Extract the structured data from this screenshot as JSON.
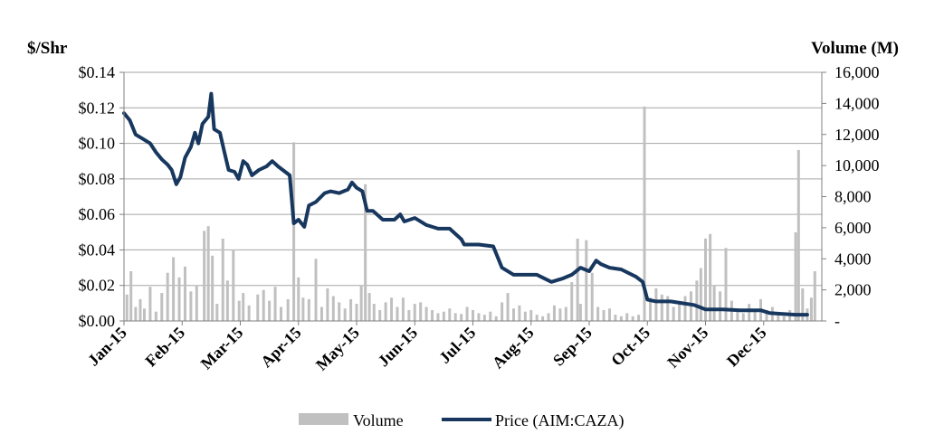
{
  "chart_data": {
    "type": "line",
    "left_axis": {
      "title": "$/Shr",
      "ticks": [
        "$0.00",
        "$0.02",
        "$0.04",
        "$0.06",
        "$0.08",
        "$0.10",
        "$0.12",
        "$0.14"
      ],
      "range": [
        0,
        0.14
      ]
    },
    "right_axis": {
      "title": "Volume (M)",
      "ticks": [
        "-",
        "2,000",
        "4,000",
        "6,000",
        "8,000",
        "10,000",
        "12,000",
        "14,000",
        "16,000"
      ],
      "range": [
        0,
        16000
      ]
    },
    "x_axis": {
      "ticks": [
        "Jan-15",
        "Feb-15",
        "Mar-15",
        "Apr-15",
        "May-15",
        "Jun-15",
        "Jul-15",
        "Aug-15",
        "Sep-15",
        "Oct-15",
        "Nov-15",
        "Dec-15"
      ]
    },
    "grid": "horizontal",
    "legend_position": "bottom",
    "legend": [
      {
        "label": "Volume",
        "kind": "bar",
        "color": "#c0c0c0"
      },
      {
        "label": "Price (AIM:CAZA)",
        "kind": "line",
        "color": "#17375e"
      }
    ],
    "series": [
      {
        "name": "Price (AIM:CAZA)",
        "axis": "left",
        "points": [
          [
            0,
            0.117
          ],
          [
            0.1,
            0.113
          ],
          [
            0.2,
            0.105
          ],
          [
            0.3,
            0.103
          ],
          [
            0.45,
            0.1
          ],
          [
            0.55,
            0.095
          ],
          [
            0.65,
            0.091
          ],
          [
            0.75,
            0.088
          ],
          [
            0.82,
            0.085
          ],
          [
            0.9,
            0.077
          ],
          [
            0.97,
            0.081
          ],
          [
            1.05,
            0.092
          ],
          [
            1.15,
            0.098
          ],
          [
            1.22,
            0.106
          ],
          [
            1.28,
            0.1
          ],
          [
            1.35,
            0.111
          ],
          [
            1.45,
            0.115
          ],
          [
            1.5,
            0.128
          ],
          [
            1.55,
            0.108
          ],
          [
            1.65,
            0.106
          ],
          [
            1.72,
            0.096
          ],
          [
            1.8,
            0.085
          ],
          [
            1.9,
            0.084
          ],
          [
            1.97,
            0.08
          ],
          [
            2.05,
            0.09
          ],
          [
            2.12,
            0.088
          ],
          [
            2.2,
            0.082
          ],
          [
            2.32,
            0.085
          ],
          [
            2.45,
            0.087
          ],
          [
            2.55,
            0.09
          ],
          [
            2.65,
            0.087
          ],
          [
            2.85,
            0.082
          ],
          [
            2.92,
            0.055
          ],
          [
            3.0,
            0.057
          ],
          [
            3.1,
            0.053
          ],
          [
            3.18,
            0.065
          ],
          [
            3.3,
            0.067
          ],
          [
            3.45,
            0.072
          ],
          [
            3.55,
            0.073
          ],
          [
            3.7,
            0.072
          ],
          [
            3.85,
            0.074
          ],
          [
            3.92,
            0.078
          ],
          [
            4.0,
            0.075
          ],
          [
            4.1,
            0.073
          ],
          [
            4.18,
            0.062
          ],
          [
            4.28,
            0.062
          ],
          [
            4.45,
            0.057
          ],
          [
            4.65,
            0.057
          ],
          [
            4.75,
            0.06
          ],
          [
            4.82,
            0.056
          ],
          [
            5.0,
            0.058
          ],
          [
            5.2,
            0.054
          ],
          [
            5.4,
            0.052
          ],
          [
            5.6,
            0.052
          ],
          [
            5.8,
            0.046
          ],
          [
            5.85,
            0.043
          ],
          [
            6.1,
            0.043
          ],
          [
            6.35,
            0.042
          ],
          [
            6.5,
            0.03
          ],
          [
            6.7,
            0.026
          ],
          [
            6.9,
            0.026
          ],
          [
            7.1,
            0.026
          ],
          [
            7.35,
            0.022
          ],
          [
            7.55,
            0.024
          ],
          [
            7.7,
            0.026
          ],
          [
            7.85,
            0.03
          ],
          [
            8.0,
            0.028
          ],
          [
            8.12,
            0.034
          ],
          [
            8.2,
            0.032
          ],
          [
            8.35,
            0.03
          ],
          [
            8.55,
            0.029
          ],
          [
            8.8,
            0.025
          ],
          [
            8.92,
            0.022
          ],
          [
            9.0,
            0.012
          ],
          [
            9.15,
            0.011
          ],
          [
            9.4,
            0.011
          ],
          [
            9.6,
            0.01
          ],
          [
            9.8,
            0.009
          ],
          [
            10.0,
            0.0065
          ],
          [
            10.3,
            0.0065
          ],
          [
            10.6,
            0.006
          ],
          [
            10.95,
            0.006
          ],
          [
            11.1,
            0.0045
          ],
          [
            11.3,
            0.004
          ],
          [
            11.55,
            0.0035
          ],
          [
            11.75,
            0.0035
          ]
        ]
      },
      {
        "name": "Volume",
        "axis": "right",
        "points": [
          [
            0.05,
            1700
          ],
          [
            0.12,
            3200
          ],
          [
            0.2,
            900
          ],
          [
            0.28,
            1400
          ],
          [
            0.35,
            800
          ],
          [
            0.45,
            2200
          ],
          [
            0.55,
            600
          ],
          [
            0.65,
            1800
          ],
          [
            0.75,
            3100
          ],
          [
            0.85,
            4100
          ],
          [
            0.95,
            2800
          ],
          [
            1.05,
            3500
          ],
          [
            1.15,
            1900
          ],
          [
            1.25,
            2300
          ],
          [
            1.38,
            5800
          ],
          [
            1.45,
            6100
          ],
          [
            1.52,
            4200
          ],
          [
            1.6,
            1100
          ],
          [
            1.7,
            5300
          ],
          [
            1.78,
            2600
          ],
          [
            1.88,
            4600
          ],
          [
            1.98,
            1300
          ],
          [
            2.05,
            1800
          ],
          [
            2.15,
            1000
          ],
          [
            2.3,
            1700
          ],
          [
            2.4,
            2000
          ],
          [
            2.5,
            1300
          ],
          [
            2.6,
            2200
          ],
          [
            2.7,
            900
          ],
          [
            2.82,
            1400
          ],
          [
            2.92,
            11500
          ],
          [
            3.0,
            2800
          ],
          [
            3.08,
            1500
          ],
          [
            3.18,
            1400
          ],
          [
            3.3,
            4000
          ],
          [
            3.4,
            900
          ],
          [
            3.5,
            2100
          ],
          [
            3.6,
            1600
          ],
          [
            3.7,
            1200
          ],
          [
            3.8,
            800
          ],
          [
            3.9,
            1400
          ],
          [
            4.0,
            1100
          ],
          [
            4.08,
            2300
          ],
          [
            4.15,
            8800
          ],
          [
            4.22,
            1800
          ],
          [
            4.3,
            1100
          ],
          [
            4.4,
            700
          ],
          [
            4.5,
            1200
          ],
          [
            4.6,
            1500
          ],
          [
            4.7,
            900
          ],
          [
            4.8,
            1500
          ],
          [
            4.9,
            700
          ],
          [
            5.0,
            1100
          ],
          [
            5.1,
            1200
          ],
          [
            5.2,
            900
          ],
          [
            5.3,
            700
          ],
          [
            5.4,
            500
          ],
          [
            5.5,
            600
          ],
          [
            5.6,
            800
          ],
          [
            5.7,
            500
          ],
          [
            5.8,
            450
          ],
          [
            5.9,
            900
          ],
          [
            6.0,
            700
          ],
          [
            6.1,
            500
          ],
          [
            6.2,
            400
          ],
          [
            6.3,
            600
          ],
          [
            6.4,
            300
          ],
          [
            6.5,
            1200
          ],
          [
            6.6,
            1800
          ],
          [
            6.7,
            800
          ],
          [
            6.8,
            1000
          ],
          [
            6.9,
            600
          ],
          [
            7.0,
            700
          ],
          [
            7.1,
            400
          ],
          [
            7.2,
            300
          ],
          [
            7.3,
            500
          ],
          [
            7.4,
            1000
          ],
          [
            7.5,
            800
          ],
          [
            7.6,
            900
          ],
          [
            7.7,
            2500
          ],
          [
            7.8,
            5300
          ],
          [
            7.85,
            1100
          ],
          [
            7.95,
            5200
          ],
          [
            8.05,
            3100
          ],
          [
            8.15,
            900
          ],
          [
            8.25,
            700
          ],
          [
            8.35,
            800
          ],
          [
            8.45,
            400
          ],
          [
            8.55,
            300
          ],
          [
            8.65,
            500
          ],
          [
            8.75,
            300
          ],
          [
            8.85,
            400
          ],
          [
            8.95,
            13800
          ],
          [
            9.05,
            1500
          ],
          [
            9.15,
            2100
          ],
          [
            9.25,
            1700
          ],
          [
            9.35,
            1600
          ],
          [
            9.45,
            900
          ],
          [
            9.55,
            1200
          ],
          [
            9.65,
            1600
          ],
          [
            9.75,
            1900
          ],
          [
            9.85,
            2600
          ],
          [
            9.92,
            3400
          ],
          [
            10.0,
            5300
          ],
          [
            10.08,
            5600
          ],
          [
            10.15,
            2300
          ],
          [
            10.25,
            1900
          ],
          [
            10.35,
            4700
          ],
          [
            10.45,
            1300
          ],
          [
            10.55,
            800
          ],
          [
            10.65,
            500
          ],
          [
            10.75,
            1100
          ],
          [
            10.85,
            700
          ],
          [
            10.95,
            1400
          ],
          [
            11.05,
            700
          ],
          [
            11.15,
            900
          ],
          [
            11.25,
            400
          ],
          [
            11.35,
            300
          ],
          [
            11.45,
            700
          ],
          [
            11.55,
            5700
          ],
          [
            11.6,
            11000
          ],
          [
            11.67,
            2100
          ],
          [
            11.75,
            800
          ],
          [
            11.82,
            1500
          ],
          [
            11.88,
            3200
          ]
        ]
      }
    ]
  }
}
